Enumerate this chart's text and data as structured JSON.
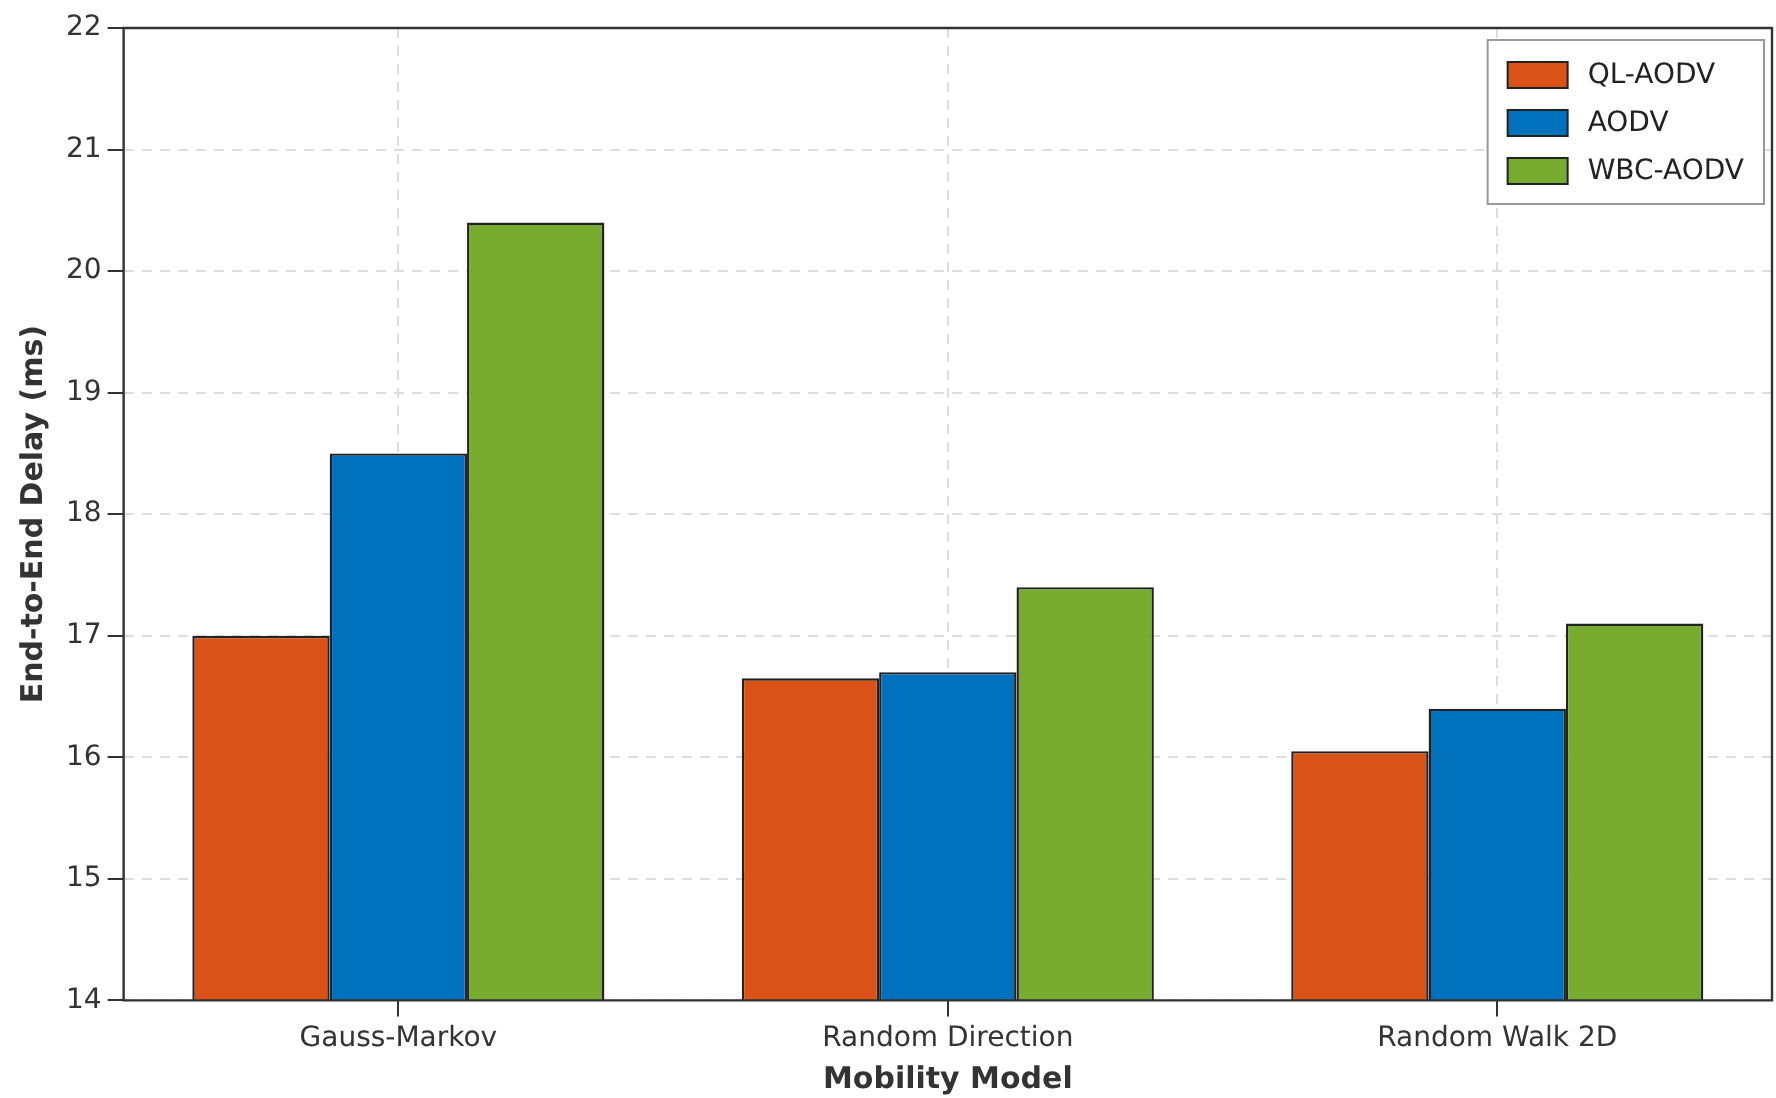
{
  "chart_data": {
    "type": "bar",
    "xlabel": "Mobility Model",
    "ylabel": "End-to-End Delay (ms)",
    "categories": [
      "Gauss-Markov",
      "Random Direction",
      "Random Walk 2D"
    ],
    "series": [
      {
        "name": "QL-AODV",
        "color": "#d95319",
        "values": [
          17.0,
          16.65,
          16.05
        ]
      },
      {
        "name": "AODV",
        "color": "#0072bd",
        "values": [
          18.5,
          16.7,
          16.4
        ]
      },
      {
        "name": "WBC-AODV",
        "color": "#77ac30",
        "values": [
          20.4,
          17.4,
          17.1
        ]
      }
    ],
    "ylim": [
      14,
      22
    ],
    "yticks": [
      14,
      15,
      16,
      17,
      18,
      19,
      20,
      21,
      22
    ],
    "grid": true,
    "legend": "top right"
  }
}
